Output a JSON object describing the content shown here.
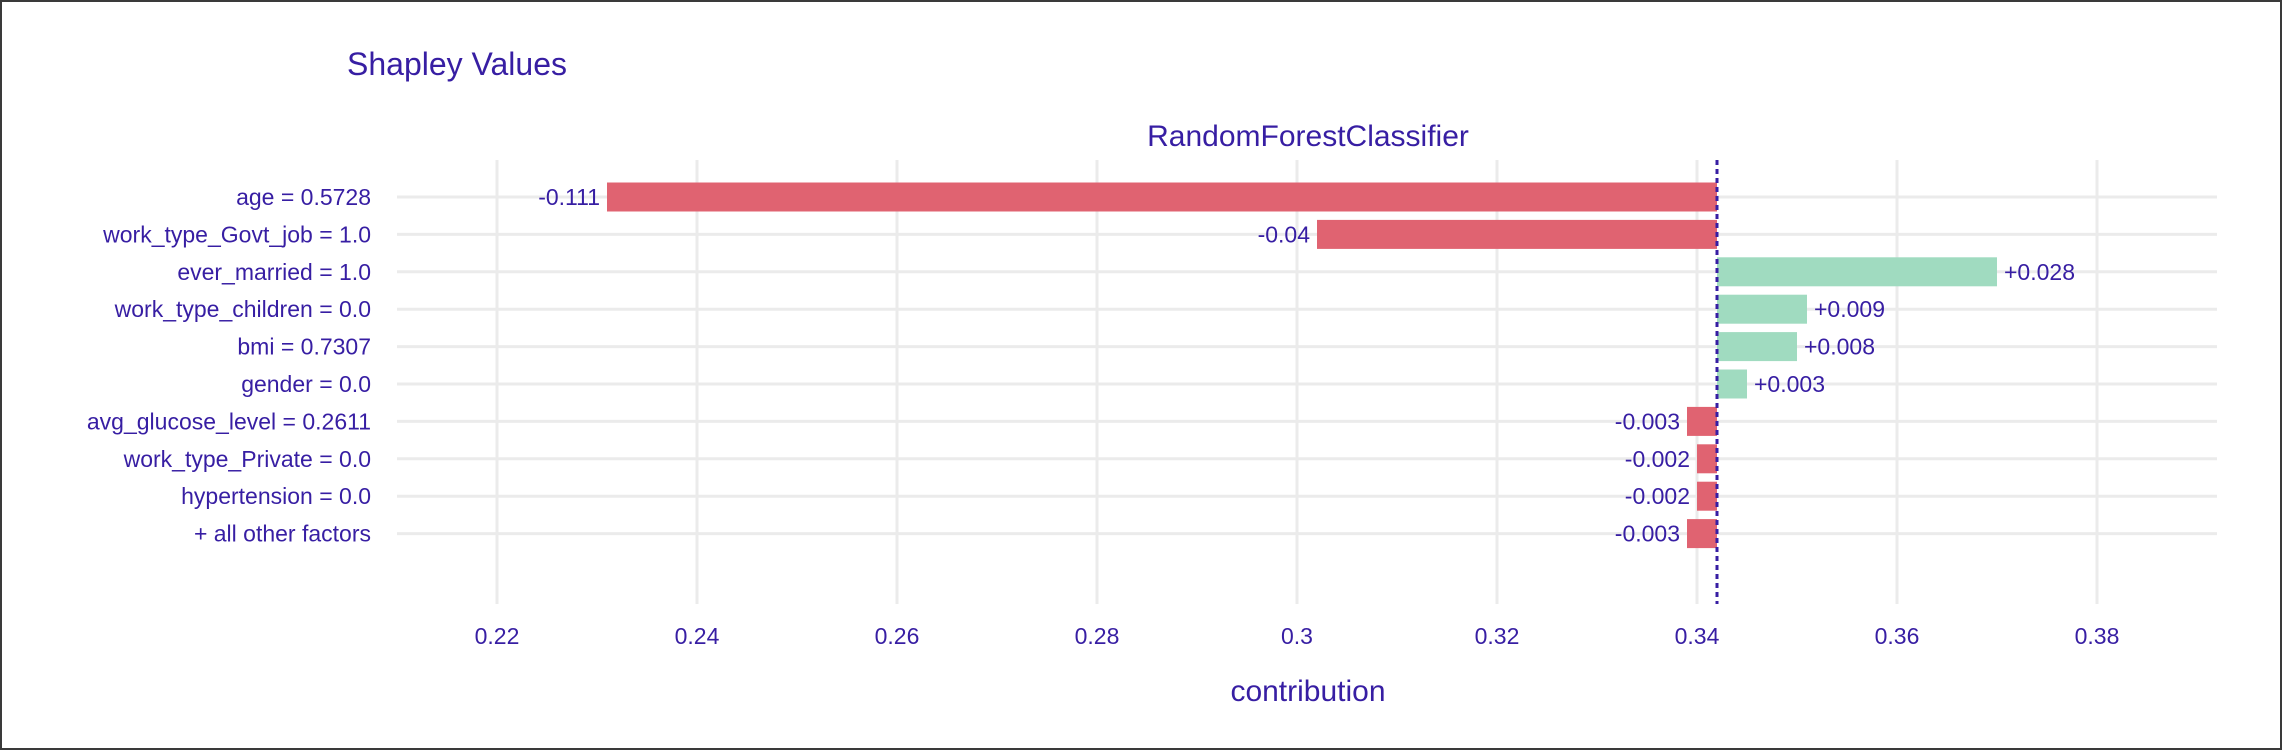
{
  "title": "Shapley Values",
  "chart_data": {
    "type": "bar",
    "subtitle": "RandomForestClassifier",
    "xlabel": "contribution",
    "ylabel": "",
    "baseline": 0.342,
    "xlim": [
      0.21,
      0.392
    ],
    "xticks": [
      0.22,
      0.24,
      0.26,
      0.28,
      0.3,
      0.32,
      0.34,
      0.36,
      0.38
    ],
    "xtick_labels": [
      "0.22",
      "0.24",
      "0.26",
      "0.28",
      "0.3",
      "0.32",
      "0.34",
      "0.36",
      "0.38"
    ],
    "grid": true,
    "categories": [
      "age = 0.5728",
      "work_type_Govt_job = 1.0",
      "ever_married = 1.0",
      "work_type_children = 0.0",
      "bmi = 0.7307",
      "gender = 0.0",
      "avg_glucose_level = 0.2611",
      "work_type_Private = 0.0",
      "hypertension = 0.0",
      "+ all other factors"
    ],
    "values": [
      -0.111,
      -0.04,
      0.028,
      0.009,
      0.008,
      0.003,
      -0.003,
      -0.002,
      -0.002,
      -0.003
    ],
    "value_labels": [
      "-0.111",
      "-0.04",
      "+0.028",
      "+0.009",
      "+0.008",
      "+0.003",
      "-0.003",
      "-0.002",
      "-0.002",
      "-0.003"
    ],
    "colors": {
      "negative": "#e06371",
      "positive": "#a0dbc0",
      "text": "#371ea3",
      "grid": "#ebebeb",
      "baseline": "#371ea3"
    }
  }
}
